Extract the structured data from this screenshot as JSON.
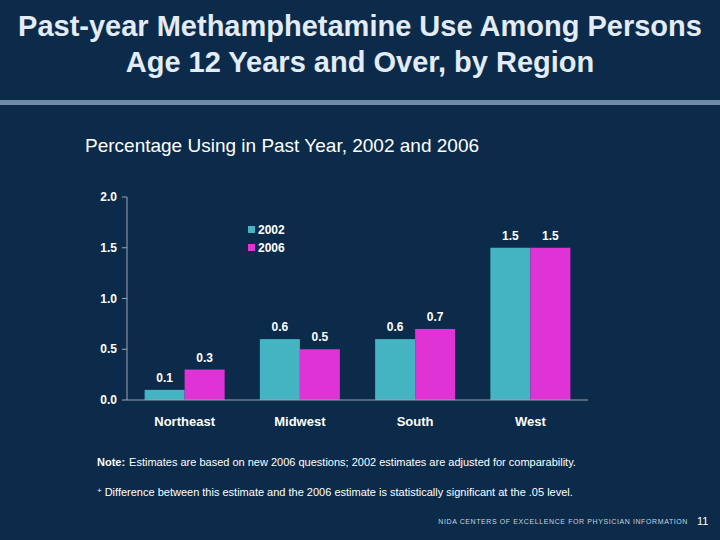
{
  "chart_data": {
    "type": "bar",
    "title": "Past-year Methamphetamine Use Among Persons Age 12 Years and Over, by Region",
    "subtitle": "Percentage Using in Past Year, 2002 and 2006",
    "categories": [
      "Northeast",
      "Midwest",
      "South",
      "West"
    ],
    "series": [
      {
        "name": "2002",
        "color": "#45b4c2",
        "values": [
          0.1,
          0.6,
          0.6,
          1.5
        ]
      },
      {
        "name": "2006",
        "color": "#df33d6",
        "values": [
          0.3,
          0.5,
          0.7,
          1.5
        ]
      }
    ],
    "ylim": [
      0,
      2
    ],
    "yticks": [
      {
        "value": 0,
        "label": "0.0"
      },
      0.5,
      {
        "value": 1,
        "label": "1.0"
      },
      1.5,
      {
        "value": 2,
        "label": "2.0"
      }
    ],
    "grid": false,
    "legend": "top-left",
    "data_labels": true
  },
  "notes": {
    "note_label": "Note:",
    "note": "Estimates are based on new 2006 questions; 2002 estimates are adjusted for comparability.",
    "footnote_symbol": "+",
    "footnote": "Difference between this estimate and the 2006 estimate is statistically significant at the .05 level."
  },
  "footer": {
    "text": "NIDA CENTERS OF EXCELLENCE FOR PHYSICIAN INFORMATION",
    "page": 11
  }
}
